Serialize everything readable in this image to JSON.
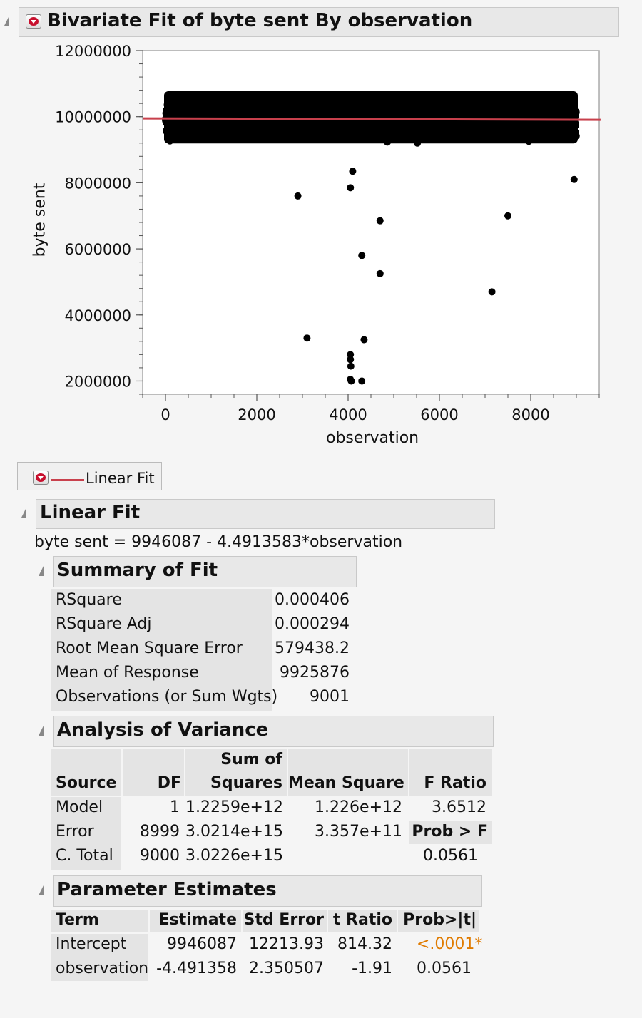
{
  "bivariate": {
    "title": "Bivariate Fit of byte sent By observation"
  },
  "chart_data": {
    "type": "scatter",
    "xlabel": "observation",
    "ylabel": "byte sent",
    "xlim": [
      -500,
      9500
    ],
    "ylim": [
      1600000,
      12000000
    ],
    "x_ticks": [
      "0",
      "2000",
      "4000",
      "6000",
      "8000"
    ],
    "x_tick_values": [
      0,
      2000,
      4000,
      6000,
      8000
    ],
    "y_ticks": [
      "12000000",
      "10000000",
      "8000000",
      "6000000",
      "4000000",
      "2000000"
    ],
    "y_tick_values": [
      12000000,
      10000000,
      8000000,
      6000000,
      4000000,
      2000000
    ],
    "grid": false,
    "dense_cluster": {
      "x_range": [
        0,
        9000
      ],
      "y_center": 9950000,
      "y_spread": 560000
    },
    "outliers": [
      {
        "x": 2900,
        "y": 7600000
      },
      {
        "x": 4050,
        "y": 7850000
      },
      {
        "x": 4700,
        "y": 6850000
      },
      {
        "x": 7500,
        "y": 7000000
      },
      {
        "x": 4300,
        "y": 5800000
      },
      {
        "x": 4700,
        "y": 5250000
      },
      {
        "x": 7150,
        "y": 4700000
      },
      {
        "x": 3100,
        "y": 3300000
      },
      {
        "x": 4350,
        "y": 3250000
      },
      {
        "x": 4050,
        "y": 2800000
      },
      {
        "x": 4050,
        "y": 2650000
      },
      {
        "x": 4060,
        "y": 2450000
      },
      {
        "x": 4050,
        "y": 2050000
      },
      {
        "x": 4070,
        "y": 2000000
      },
      {
        "x": 4300,
        "y": 2000000
      },
      {
        "x": 4100,
        "y": 8350000
      },
      {
        "x": 8950,
        "y": 8100000
      }
    ],
    "fit_line": {
      "intercept": 9946087,
      "slope": -4.4913583,
      "color": "#c8404c"
    }
  },
  "legend": {
    "label": "Linear Fit",
    "line_color": "#c8404c"
  },
  "linear_fit": {
    "title": "Linear Fit",
    "equation": "byte sent = 9946087 - 4.4913583*observation"
  },
  "summary_of_fit": {
    "title": "Summary of Fit",
    "rows": [
      {
        "label": "RSquare",
        "value": "0.000406"
      },
      {
        "label": "RSquare Adj",
        "value": "0.000294"
      },
      {
        "label": "Root Mean Square Error",
        "value": "579438.2"
      },
      {
        "label": "Mean of Response",
        "value": "9925876"
      },
      {
        "label": "Observations (or Sum Wgts)",
        "value": "9001"
      }
    ]
  },
  "anova": {
    "title": "Analysis of Variance",
    "headers": {
      "source": "Source",
      "df": "DF",
      "ss_line1": "Sum of",
      "ss_line2": "Squares",
      "ms": "Mean Square",
      "f": "F Ratio",
      "prob": "Prob > F"
    },
    "rows": [
      {
        "source": "Model",
        "df": "1",
        "ss": "1.2259e+12",
        "ms": "1.226e+12",
        "f": "3.6512"
      },
      {
        "source": "Error",
        "df": "8999",
        "ss": "3.0214e+15",
        "ms": "3.357e+11"
      },
      {
        "source": "C. Total",
        "df": "9000",
        "ss": "3.0226e+15",
        "prob": "0.0561"
      }
    ]
  },
  "parameter_estimates": {
    "title": "Parameter Estimates",
    "headers": [
      "Term",
      "Estimate",
      "Std Error",
      "t Ratio",
      "Prob>|t|"
    ],
    "rows": [
      {
        "term": "Intercept",
        "estimate": "9946087",
        "std_error": "12213.93",
        "t_ratio": "814.32",
        "prob": "<.0001*"
      },
      {
        "term": "observation",
        "estimate": "-4.491358",
        "std_error": "2.350507",
        "t_ratio": "-1.91",
        "prob": "0.0561"
      }
    ],
    "significant_color": "#e07b00"
  }
}
